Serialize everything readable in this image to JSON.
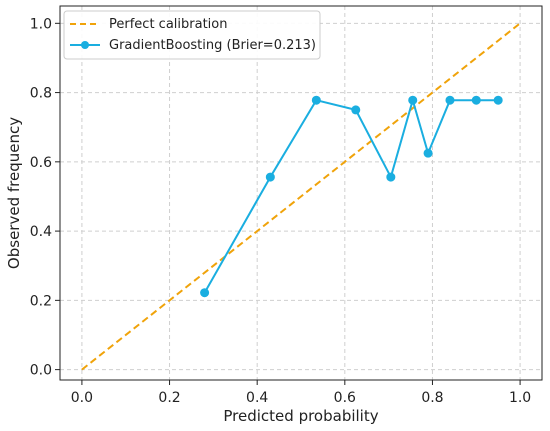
{
  "chart_data": {
    "type": "line",
    "title": "",
    "xlabel": "Predicted probability",
    "ylabel": "Observed frequency",
    "xlim": [
      -0.05,
      1.05
    ],
    "ylim": [
      -0.03,
      1.05
    ],
    "xticks": [
      0.0,
      0.2,
      0.4,
      0.6,
      0.8,
      1.0
    ],
    "yticks": [
      0.0,
      0.2,
      0.4,
      0.6,
      0.8,
      1.0
    ],
    "xtick_labels": [
      "0.0",
      "0.2",
      "0.4",
      "0.6",
      "0.8",
      "1.0"
    ],
    "ytick_labels": [
      "0.0",
      "0.2",
      "0.4",
      "0.6",
      "0.8",
      "1.0"
    ],
    "grid": true,
    "legend_position": "top-left",
    "series": [
      {
        "name": "Perfect calibration",
        "style": "dashed",
        "marker": "none",
        "color": "#f0a30a",
        "x": [
          0.0,
          1.0
        ],
        "y": [
          0.0,
          1.0
        ]
      },
      {
        "name": "GradientBoosting (Brier=0.213)",
        "style": "solid",
        "marker": "circle",
        "color": "#1aaee0",
        "x": [
          0.28,
          0.43,
          0.535,
          0.625,
          0.705,
          0.755,
          0.79,
          0.84,
          0.9,
          0.95
        ],
        "y": [
          0.222,
          0.556,
          0.778,
          0.75,
          0.556,
          0.778,
          0.625,
          0.778,
          0.778,
          0.778
        ]
      }
    ]
  }
}
